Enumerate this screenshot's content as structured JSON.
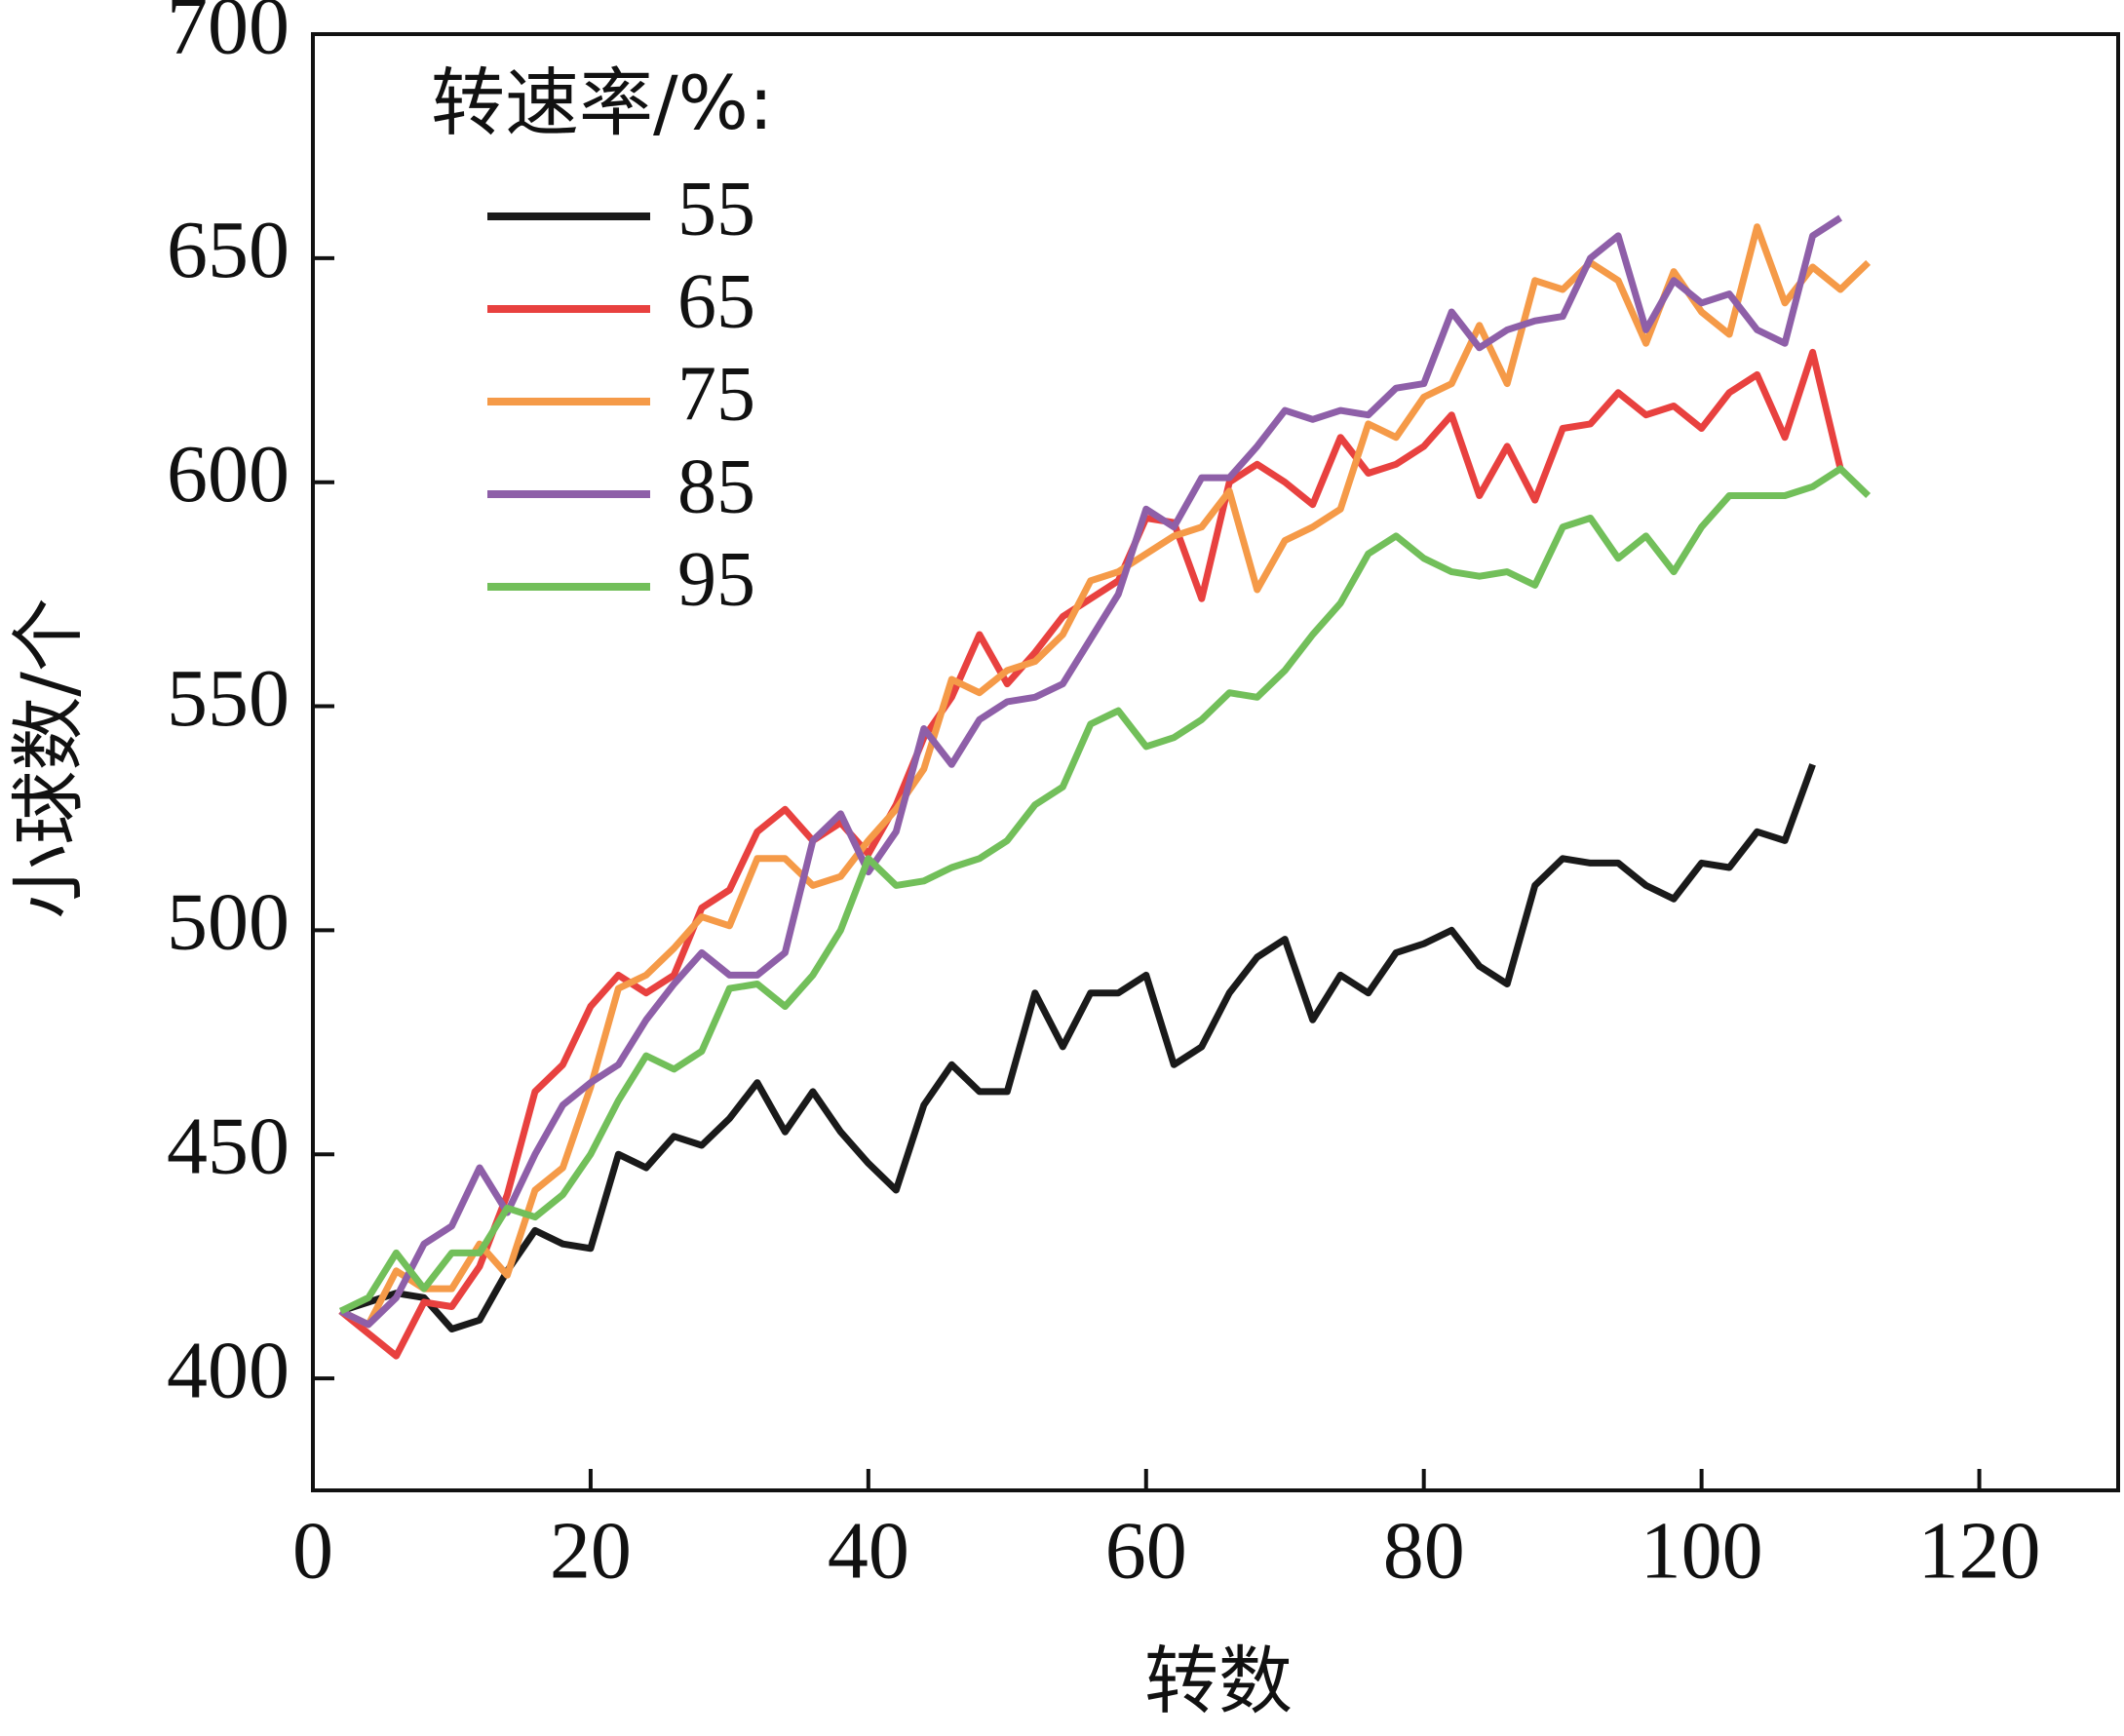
{
  "chart_data": {
    "type": "line",
    "x_label": "转数",
    "y_label": "小球数/个",
    "legend_title": "转速率/%:",
    "x": [
      2,
      4,
      6,
      8,
      10,
      12,
      14,
      16,
      18,
      20,
      22,
      24,
      26,
      28,
      30,
      32,
      34,
      36,
      38,
      40,
      42,
      44,
      46,
      48,
      50,
      52,
      54,
      56,
      58,
      60,
      62,
      64,
      66,
      68,
      70,
      72,
      74,
      76,
      78,
      80,
      82,
      84,
      86,
      88,
      90,
      92,
      94,
      96,
      98,
      100,
      102,
      104,
      106,
      108,
      110,
      112
    ],
    "series": [
      {
        "name": "55",
        "color": "#1a1a1a",
        "values": [
          415,
          417,
          419,
          418,
          411,
          413,
          424,
          433,
          430,
          429,
          450,
          447,
          454,
          452,
          458,
          466,
          455,
          464,
          455,
          448,
          442,
          461,
          470,
          464,
          464,
          486,
          474,
          486,
          486,
          490,
          470,
          474,
          486,
          494,
          498,
          480,
          490,
          486,
          495,
          497,
          500,
          492,
          488,
          510,
          516,
          515,
          515,
          510,
          507,
          515,
          514,
          522,
          520,
          537,
          null,
          null
        ]
      },
      {
        "name": "65",
        "color": "#e8413f",
        "values": [
          415,
          410,
          405,
          417,
          416,
          425,
          441,
          464,
          470,
          483,
          490,
          486,
          490,
          505,
          509,
          522,
          527,
          520,
          524,
          517,
          528,
          543,
          552,
          566,
          555,
          562,
          570,
          574,
          578,
          592,
          591,
          574,
          600,
          604,
          600,
          595,
          610,
          602,
          604,
          608,
          615,
          597,
          608,
          596,
          612,
          613,
          620,
          615,
          617,
          612,
          620,
          624,
          610,
          629,
          603,
          null
        ]
      },
      {
        "name": "75",
        "color": "#f59a48",
        "values": [
          415,
          412,
          424,
          420,
          420,
          430,
          423,
          442,
          447,
          465,
          487,
          490,
          496,
          503,
          501,
          516,
          516,
          510,
          512,
          520,
          527,
          536,
          556,
          553,
          558,
          560,
          566,
          578,
          580,
          584,
          588,
          590,
          598,
          576,
          587,
          590,
          594,
          613,
          610,
          619,
          622,
          635,
          622,
          645,
          643,
          649,
          645,
          631,
          647,
          638,
          633,
          657,
          640,
          648,
          643,
          649
        ]
      },
      {
        "name": "85",
        "color": "#8e5fa8",
        "values": [
          415,
          412,
          418,
          430,
          434,
          447,
          437,
          450,
          461,
          466,
          470,
          480,
          488,
          495,
          490,
          490,
          495,
          520,
          526,
          513,
          522,
          545,
          537,
          547,
          551,
          552,
          555,
          565,
          575,
          594,
          590,
          601,
          601,
          608,
          616,
          614,
          616,
          615,
          621,
          622,
          638,
          630,
          634,
          636,
          637,
          650,
          655,
          634,
          645,
          640,
          642,
          634,
          631,
          655,
          659,
          null
        ]
      },
      {
        "name": "95",
        "color": "#72bf5a",
        "values": [
          415,
          418,
          428,
          420,
          428,
          428,
          438,
          436,
          441,
          450,
          462,
          472,
          469,
          473,
          487,
          488,
          483,
          490,
          500,
          516,
          510,
          511,
          514,
          516,
          520,
          528,
          532,
          546,
          549,
          541,
          543,
          547,
          553,
          552,
          558,
          566,
          573,
          584,
          588,
          583,
          580,
          579,
          580,
          577,
          590,
          592,
          583,
          588,
          580,
          590,
          597,
          597,
          597,
          599,
          603,
          597
        ]
      }
    ],
    "xlim": [
      0,
      130
    ],
    "xticks": [
      0,
      20,
      40,
      60,
      80,
      100,
      120
    ],
    "ylim": [
      375,
      700
    ],
    "yticks": [
      400,
      450,
      500,
      550,
      600,
      650,
      700
    ]
  }
}
